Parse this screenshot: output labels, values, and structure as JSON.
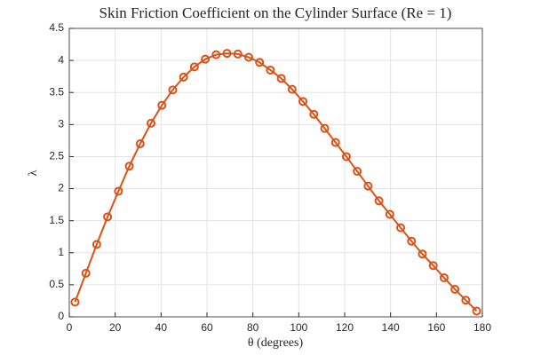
{
  "chart_data": {
    "type": "line",
    "title": "Skin Friction Coefficient on the Cylinder Surface (Re = 1)",
    "x_label": "θ (degrees)",
    "y_label": "λ",
    "x": [
      2.5,
      7.23,
      11.96,
      16.69,
      21.42,
      26.15,
      30.88,
      35.61,
      40.34,
      45.07,
      49.8,
      54.53,
      59.26,
      63.99,
      68.72,
      73.45,
      78.18,
      82.91,
      87.64,
      92.37,
      97.1,
      101.83,
      106.56,
      111.29,
      116.02,
      120.75,
      125.48,
      130.21,
      134.94,
      139.67,
      144.4,
      149.13,
      153.86,
      158.59,
      163.32,
      168.05,
      172.78,
      177.51
    ],
    "values": [
      0.23,
      0.68,
      1.13,
      1.56,
      1.96,
      2.35,
      2.7,
      3.02,
      3.3,
      3.54,
      3.74,
      3.9,
      4.02,
      4.09,
      4.11,
      4.1,
      4.05,
      3.97,
      3.85,
      3.72,
      3.55,
      3.36,
      3.16,
      2.94,
      2.72,
      2.5,
      2.27,
      2.04,
      1.81,
      1.6,
      1.39,
      1.18,
      0.98,
      0.8,
      0.61,
      0.43,
      0.26,
      0.09
    ],
    "color": "#d95319",
    "xlim": [
      0,
      180
    ],
    "xticks": [
      0,
      20,
      40,
      60,
      80,
      100,
      120,
      140,
      160,
      180
    ],
    "ylim": [
      0,
      4.5
    ],
    "yticks": [
      0,
      0.5,
      1,
      1.5,
      2,
      2.5,
      3,
      3.5,
      4,
      4.5
    ],
    "grid": true
  }
}
